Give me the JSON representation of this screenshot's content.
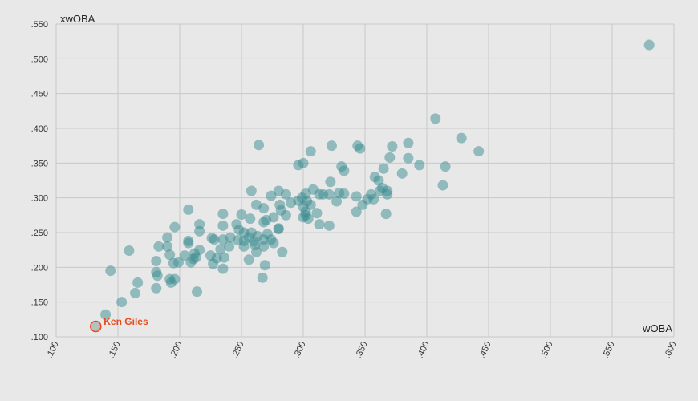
{
  "chart_data": {
    "type": "scatter",
    "xlabel": "wOBA",
    "ylabel": "xwOBA",
    "xlim": [
      0.1,
      0.6
    ],
    "ylim": [
      0.1,
      0.55
    ],
    "x_ticks": [
      ".100",
      ".150",
      ".200",
      ".250",
      ".300",
      ".350",
      ".400",
      ".450",
      ".500",
      ".550",
      ".600"
    ],
    "y_ticks": [
      ".100",
      ".150",
      ".200",
      ".250",
      ".300",
      ".350",
      ".400",
      ".450",
      ".500",
      ".550"
    ],
    "grid": true,
    "colors": {
      "point": "#3a8b8f",
      "highlight": "#e8491d",
      "highlight_fill": "#b7c0c0",
      "grid": "#c8c8c8",
      "background": "#e8e8e8"
    },
    "highlight": {
      "label": "Ken Giles",
      "x": 0.132,
      "y": 0.115
    },
    "points": [
      [
        0.58,
        0.52
      ],
      [
        0.407,
        0.414
      ],
      [
        0.428,
        0.386
      ],
      [
        0.442,
        0.367
      ],
      [
        0.264,
        0.376
      ],
      [
        0.306,
        0.367
      ],
      [
        0.323,
        0.375
      ],
      [
        0.344,
        0.375
      ],
      [
        0.346,
        0.371
      ],
      [
        0.372,
        0.374
      ],
      [
        0.385,
        0.379
      ],
      [
        0.385,
        0.357
      ],
      [
        0.37,
        0.358
      ],
      [
        0.394,
        0.347
      ],
      [
        0.415,
        0.345
      ],
      [
        0.296,
        0.347
      ],
      [
        0.3,
        0.35
      ],
      [
        0.331,
        0.345
      ],
      [
        0.333,
        0.339
      ],
      [
        0.365,
        0.342
      ],
      [
        0.38,
        0.335
      ],
      [
        0.358,
        0.33
      ],
      [
        0.361,
        0.325
      ],
      [
        0.322,
        0.323
      ],
      [
        0.413,
        0.318
      ],
      [
        0.258,
        0.31
      ],
      [
        0.308,
        0.312
      ],
      [
        0.302,
        0.306
      ],
      [
        0.313,
        0.305
      ],
      [
        0.316,
        0.305
      ],
      [
        0.321,
        0.305
      ],
      [
        0.333,
        0.306
      ],
      [
        0.329,
        0.307
      ],
      [
        0.343,
        0.302
      ],
      [
        0.355,
        0.305
      ],
      [
        0.364,
        0.314
      ],
      [
        0.368,
        0.31
      ],
      [
        0.368,
        0.305
      ],
      [
        0.362,
        0.31
      ],
      [
        0.299,
        0.3
      ],
      [
        0.296,
        0.296
      ],
      [
        0.303,
        0.295
      ],
      [
        0.306,
        0.29
      ],
      [
        0.327,
        0.295
      ],
      [
        0.352,
        0.298
      ],
      [
        0.348,
        0.29
      ],
      [
        0.357,
        0.298
      ],
      [
        0.274,
        0.303
      ],
      [
        0.28,
        0.31
      ],
      [
        0.286,
        0.305
      ],
      [
        0.262,
        0.29
      ],
      [
        0.268,
        0.285
      ],
      [
        0.281,
        0.29
      ],
      [
        0.29,
        0.293
      ],
      [
        0.3,
        0.287
      ],
      [
        0.282,
        0.282
      ],
      [
        0.302,
        0.28
      ],
      [
        0.311,
        0.278
      ],
      [
        0.3,
        0.272
      ],
      [
        0.302,
        0.275
      ],
      [
        0.304,
        0.27
      ],
      [
        0.313,
        0.262
      ],
      [
        0.321,
        0.26
      ],
      [
        0.343,
        0.28
      ],
      [
        0.367,
        0.277
      ],
      [
        0.25,
        0.276
      ],
      [
        0.257,
        0.27
      ],
      [
        0.268,
        0.265
      ],
      [
        0.27,
        0.268
      ],
      [
        0.276,
        0.272
      ],
      [
        0.286,
        0.275
      ],
      [
        0.235,
        0.277
      ],
      [
        0.207,
        0.283
      ],
      [
        0.216,
        0.262
      ],
      [
        0.235,
        0.26
      ],
      [
        0.246,
        0.262
      ],
      [
        0.248,
        0.254
      ],
      [
        0.252,
        0.25
      ],
      [
        0.258,
        0.25
      ],
      [
        0.263,
        0.245
      ],
      [
        0.271,
        0.248
      ],
      [
        0.28,
        0.256
      ],
      [
        0.28,
        0.255
      ],
      [
        0.216,
        0.252
      ],
      [
        0.226,
        0.242
      ],
      [
        0.228,
        0.24
      ],
      [
        0.235,
        0.24
      ],
      [
        0.241,
        0.243
      ],
      [
        0.247,
        0.239
      ],
      [
        0.252,
        0.238
      ],
      [
        0.256,
        0.243
      ],
      [
        0.26,
        0.237
      ],
      [
        0.261,
        0.232
      ],
      [
        0.268,
        0.24
      ],
      [
        0.274,
        0.24
      ],
      [
        0.276,
        0.235
      ],
      [
        0.268,
        0.23
      ],
      [
        0.252,
        0.23
      ],
      [
        0.24,
        0.23
      ],
      [
        0.233,
        0.226
      ],
      [
        0.207,
        0.238
      ],
      [
        0.207,
        0.235
      ],
      [
        0.216,
        0.225
      ],
      [
        0.212,
        0.22
      ],
      [
        0.225,
        0.217
      ],
      [
        0.236,
        0.214
      ],
      [
        0.23,
        0.213
      ],
      [
        0.211,
        0.212
      ],
      [
        0.213,
        0.214
      ],
      [
        0.204,
        0.217
      ],
      [
        0.192,
        0.218
      ],
      [
        0.19,
        0.23
      ],
      [
        0.19,
        0.243
      ],
      [
        0.183,
        0.23
      ],
      [
        0.196,
        0.258
      ],
      [
        0.159,
        0.224
      ],
      [
        0.283,
        0.222
      ],
      [
        0.262,
        0.222
      ],
      [
        0.256,
        0.211
      ],
      [
        0.227,
        0.205
      ],
      [
        0.195,
        0.206
      ],
      [
        0.199,
        0.207
      ],
      [
        0.181,
        0.209
      ],
      [
        0.209,
        0.207
      ],
      [
        0.269,
        0.203
      ],
      [
        0.235,
        0.198
      ],
      [
        0.144,
        0.195
      ],
      [
        0.181,
        0.193
      ],
      [
        0.182,
        0.188
      ],
      [
        0.192,
        0.183
      ],
      [
        0.196,
        0.183
      ],
      [
        0.193,
        0.178
      ],
      [
        0.267,
        0.185
      ],
      [
        0.166,
        0.178
      ],
      [
        0.181,
        0.17
      ],
      [
        0.164,
        0.163
      ],
      [
        0.214,
        0.165
      ],
      [
        0.153,
        0.15
      ],
      [
        0.14,
        0.132
      ]
    ]
  }
}
